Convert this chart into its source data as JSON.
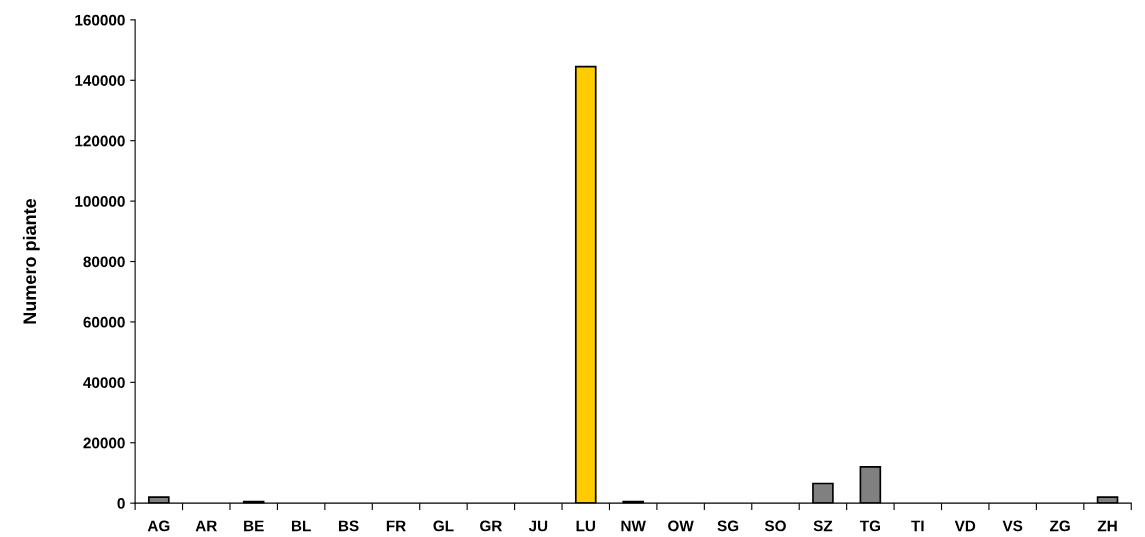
{
  "chart_data": {
    "type": "bar",
    "ylabel": "Numero piante",
    "categories": [
      "AG",
      "AR",
      "BE",
      "BL",
      "BS",
      "FR",
      "GL",
      "GR",
      "JU",
      "LU",
      "NW",
      "OW",
      "SG",
      "SO",
      "SZ",
      "TG",
      "TI",
      "VD",
      "VS",
      "ZG",
      "ZH"
    ],
    "values": [
      2000,
      null,
      500,
      null,
      null,
      null,
      null,
      null,
      null,
      144500,
      500,
      null,
      null,
      null,
      6500,
      12000,
      null,
      null,
      null,
      null,
      2000
    ],
    "colors": [
      "#808080",
      null,
      "#000000",
      null,
      null,
      null,
      null,
      null,
      null,
      "#ffcc00",
      "#000000",
      null,
      null,
      null,
      "#808080",
      "#808080",
      null,
      null,
      null,
      null,
      "#808080"
    ],
    "ylim": [
      0,
      160000
    ],
    "yticks": [
      0,
      20000,
      40000,
      60000,
      80000,
      100000,
      120000,
      140000,
      160000
    ],
    "grid": false,
    "legend": false
  }
}
